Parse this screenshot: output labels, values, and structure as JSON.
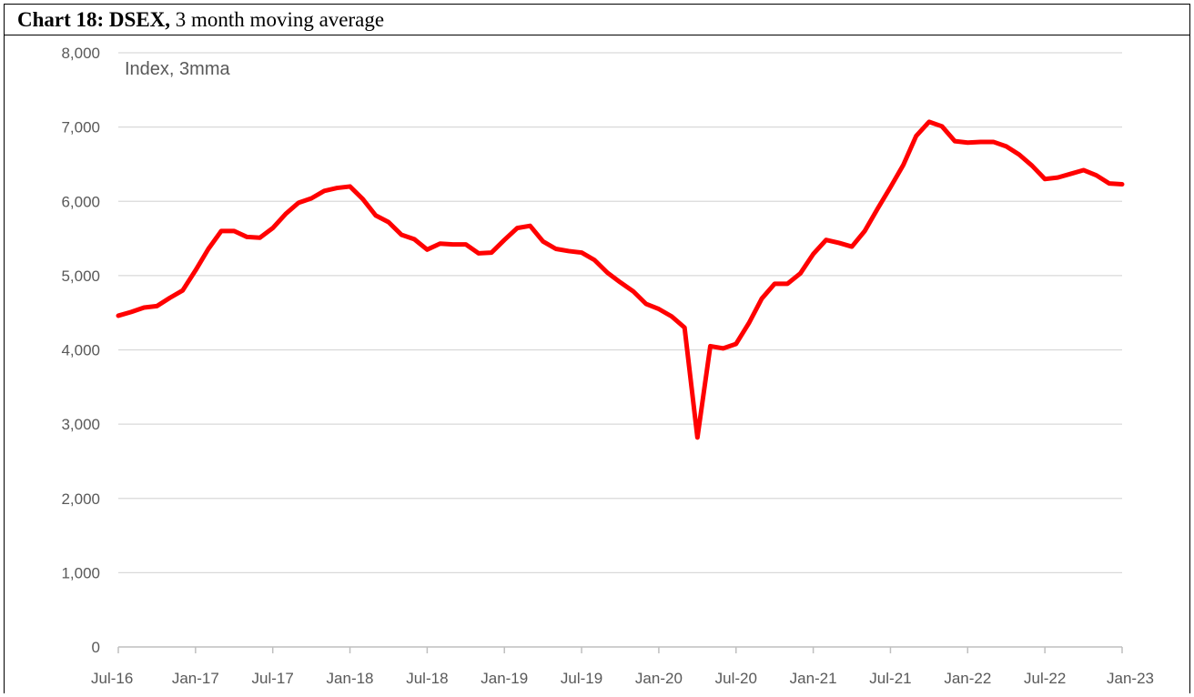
{
  "header": {
    "title_bold": "Chart 18: DSEX,",
    "title_rest": " 3 month moving average"
  },
  "chart_data": {
    "type": "line",
    "title": "Chart 18: DSEX, 3 month moving average",
    "unit_label": "Index, 3mma",
    "xlabel": "",
    "ylabel": "",
    "ylim": [
      0,
      8000
    ],
    "y_ticks": [
      0,
      1000,
      2000,
      3000,
      4000,
      5000,
      6000,
      7000,
      8000
    ],
    "y_tick_labels": [
      "0",
      "1,000",
      "2,000",
      "3,000",
      "4,000",
      "5,000",
      "6,000",
      "7,000",
      "8,000"
    ],
    "x_tick_labels": [
      "Jul-16",
      "Jan-17",
      "Jul-17",
      "Jan-18",
      "Jul-18",
      "Jan-19",
      "Jul-19",
      "Jan-20",
      "Jul-20",
      "Jan-21",
      "Jul-21",
      "Jan-22",
      "Jul-22",
      "Jan-23"
    ],
    "grid": true,
    "legend": "none",
    "line_color": "#ff0000",
    "x": [
      "Jul-16",
      "Aug-16",
      "Sep-16",
      "Oct-16",
      "Nov-16",
      "Dec-16",
      "Jan-17",
      "Feb-17",
      "Mar-17",
      "Apr-17",
      "May-17",
      "Jun-17",
      "Jul-17",
      "Aug-17",
      "Sep-17",
      "Oct-17",
      "Nov-17",
      "Dec-17",
      "Jan-18",
      "Feb-18",
      "Mar-18",
      "Apr-18",
      "May-18",
      "Jun-18",
      "Jul-18",
      "Aug-18",
      "Sep-18",
      "Oct-18",
      "Nov-18",
      "Dec-18",
      "Jan-19",
      "Feb-19",
      "Mar-19",
      "Apr-19",
      "May-19",
      "Jun-19",
      "Jul-19",
      "Aug-19",
      "Sep-19",
      "Oct-19",
      "Nov-19",
      "Dec-19",
      "Jan-20",
      "Feb-20",
      "Mar-20",
      "Apr-20",
      "May-20",
      "Jun-20",
      "Jul-20",
      "Aug-20",
      "Sep-20",
      "Oct-20",
      "Nov-20",
      "Dec-20",
      "Jan-21",
      "Feb-21",
      "Mar-21",
      "Apr-21",
      "May-21",
      "Jun-21",
      "Jul-21",
      "Aug-21",
      "Sep-21",
      "Oct-21",
      "Nov-21",
      "Dec-21",
      "Jan-22",
      "Feb-22",
      "Mar-22",
      "Apr-22",
      "May-22",
      "Jun-22",
      "Jul-22",
      "Aug-22",
      "Sep-22",
      "Oct-22",
      "Nov-22",
      "Dec-22",
      "Jan-23"
    ],
    "series": [
      {
        "values": [
          4460,
          4510,
          4570,
          4590,
          4700,
          4800,
          5070,
          5360,
          5600,
          5600,
          5520,
          5510,
          5640,
          5830,
          5980,
          6040,
          6140,
          6180,
          6200,
          6030,
          5810,
          5720,
          5550,
          5490,
          5350,
          5430,
          5420,
          5420,
          5300,
          5310,
          5480,
          5640,
          5670,
          5460,
          5360,
          5330,
          5310,
          5210,
          5040,
          4910,
          4790,
          4620,
          4550,
          4450,
          4300,
          2820,
          4050,
          4020,
          4080,
          4360,
          4690,
          4890,
          4890,
          5030,
          5290,
          5480,
          5440,
          5390,
          5600,
          5900,
          6190,
          6490,
          6880,
          7070,
          7010,
          6810,
          6790,
          6800,
          6800,
          6740,
          6630,
          6480,
          6300,
          6320,
          6370,
          6420,
          6350,
          6240,
          6230
        ]
      }
    ]
  }
}
